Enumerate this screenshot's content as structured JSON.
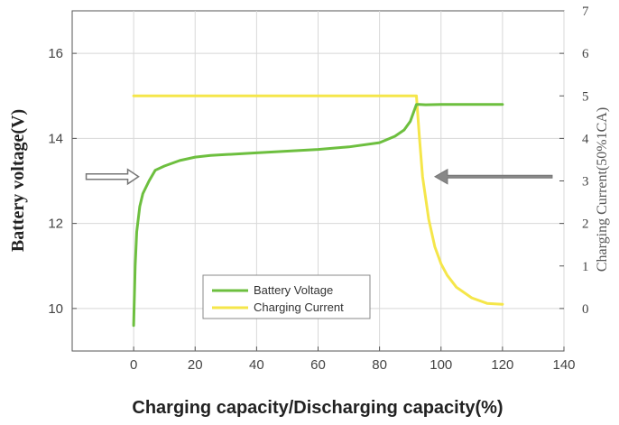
{
  "chart_data": {
    "type": "line",
    "xlabel": "Charging capacity/Discharging capacity(%)",
    "ylabel": "Battery voltage(V)",
    "y2label": "Charging Current(50%1CA)",
    "xlim": [
      -20,
      140
    ],
    "ylim": [
      9,
      17
    ],
    "y2lim": [
      -1,
      7
    ],
    "x_ticks": [
      "0",
      "20",
      "40",
      "60",
      "80",
      "100",
      "120",
      "140"
    ],
    "y_ticks": [
      "10",
      "12",
      "14",
      "16"
    ],
    "y2_ticks": [
      "0",
      "1",
      "2",
      "3",
      "4",
      "5",
      "6",
      "7"
    ],
    "grid": true,
    "legend_position": "bottom-center",
    "series": [
      {
        "name": "Battery Voltage",
        "axis": "left",
        "color": "#6dbf3f",
        "x": [
          0,
          0.5,
          1,
          2,
          3,
          5,
          7,
          10,
          15,
          20,
          25,
          30,
          40,
          50,
          60,
          70,
          80,
          85,
          88,
          90,
          91,
          92,
          93,
          95,
          100,
          110,
          120
        ],
        "y": [
          9.6,
          11.0,
          11.8,
          12.4,
          12.7,
          13.0,
          13.25,
          13.35,
          13.48,
          13.56,
          13.6,
          13.62,
          13.66,
          13.7,
          13.74,
          13.8,
          13.9,
          14.05,
          14.2,
          14.4,
          14.6,
          14.8,
          14.8,
          14.79,
          14.8,
          14.8,
          14.8
        ]
      },
      {
        "name": "Charging Current",
        "axis": "right",
        "color": "#f5e64a",
        "x": [
          0,
          20,
          40,
          60,
          80,
          92,
          93,
          94,
          96,
          98,
          100,
          102,
          105,
          110,
          115,
          120
        ],
        "y": [
          5,
          5,
          5,
          5,
          5,
          5,
          4.0,
          3.1,
          2.1,
          1.45,
          1.05,
          0.78,
          0.5,
          0.25,
          0.12,
          0.1
        ]
      }
    ],
    "annotations": [
      {
        "type": "arrow",
        "direction": "right",
        "at_x": 1,
        "at_y": 13.1
      },
      {
        "type": "arrow",
        "direction": "left",
        "at_x": 98,
        "at_y": 13.1
      }
    ]
  }
}
